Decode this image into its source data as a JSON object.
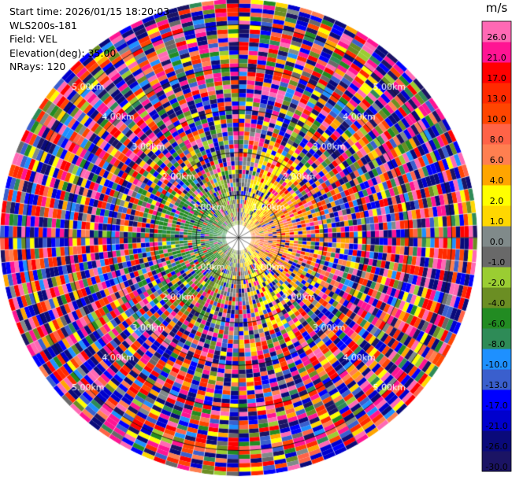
{
  "header": {
    "start_time": "Start time: 2026/01/15 18:20:03",
    "instrument": "WLS200s-181",
    "field": "Field: VEL",
    "elevation": "Elevation(deg): 35.00",
    "nrays": "NRays: 120"
  },
  "chart_data": {
    "type": "heatmap",
    "projection": "polar-ppi",
    "field": "VEL",
    "units": "m/s",
    "elevation_deg": 35.0,
    "n_rays": 120,
    "max_range_km": 5.6,
    "range_ring_labels": [
      "1.00km",
      "2.00km",
      "3.00km",
      "4.00km",
      "5.00km"
    ],
    "colorbar": {
      "label": "m/s",
      "bounds": [
        -30,
        -26,
        -21,
        -17,
        -13,
        -10,
        -8,
        -6,
        -4,
        -2,
        -1,
        0,
        1,
        2,
        4,
        6,
        8,
        10,
        13,
        17,
        21,
        26,
        30
      ],
      "tick_labels": [
        "-30.0",
        "-26.0",
        "-21.0",
        "-17.0",
        "-13.0",
        "-10.0",
        "-8.0",
        "-6.0",
        "-4.0",
        "-2.0",
        "-1.0",
        "0.0",
        "1.0",
        "2.0",
        "4.0",
        "6.0",
        "8.0",
        "10.0",
        "13.0",
        "17.0",
        "21.0",
        "26.0"
      ],
      "colors": [
        "#1b1464",
        "#0a0a7a",
        "#0000cd",
        "#0000ff",
        "#3a5fcd",
        "#1e90ff",
        "#2e8b57",
        "#228b22",
        "#6b8e23",
        "#9acd32",
        "#696969",
        "#808a8a",
        "#ffd700",
        "#ffff00",
        "#ffa500",
        "#ff7f50",
        "#ff6347",
        "#ff4500",
        "#ff2a00",
        "#ff0000",
        "#ff1493",
        "#ff69b4"
      ]
    }
  }
}
